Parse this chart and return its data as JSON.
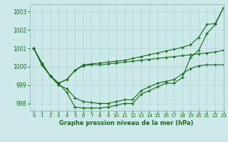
{
  "title": "Graphe pression niveau de la mer (hPa)",
  "bg_color": "#cce8e8",
  "line_color": "#1a6b1a",
  "xlim": [
    -0.5,
    23
  ],
  "ylim": [
    997.6,
    1003.4
  ],
  "yticks": [
    998,
    999,
    1000,
    1001,
    1002,
    1003
  ],
  "xticks": [
    0,
    1,
    2,
    3,
    4,
    5,
    6,
    7,
    8,
    9,
    10,
    11,
    12,
    13,
    14,
    15,
    16,
    17,
    18,
    19,
    20,
    21,
    22,
    23
  ],
  "series": [
    {
      "x": [
        0,
        1,
        2,
        3,
        4,
        5,
        6,
        7,
        8,
        9,
        10,
        11,
        12,
        13,
        14,
        15,
        16,
        17,
        18,
        19,
        20,
        21,
        22,
        23
      ],
      "y": [
        1001.0,
        1000.2,
        999.5,
        999.1,
        998.6,
        997.8,
        997.75,
        997.75,
        997.75,
        997.8,
        997.9,
        998.0,
        998.0,
        998.5,
        998.7,
        998.9,
        999.1,
        999.1,
        999.4,
        1000.5,
        1000.9,
        1001.8,
        1002.3,
        1003.2
      ]
    },
    {
      "x": [
        0,
        1,
        2,
        3,
        4,
        5,
        6,
        7,
        8,
        9,
        10,
        11,
        12,
        13,
        14,
        15,
        16,
        17,
        18,
        19,
        20,
        21,
        22,
        23
      ],
      "y": [
        1001.0,
        1000.1,
        999.5,
        999.0,
        998.8,
        998.3,
        998.1,
        998.05,
        998.0,
        998.0,
        998.1,
        998.2,
        998.2,
        998.7,
        998.9,
        999.1,
        999.2,
        999.3,
        999.6,
        999.9,
        1000.05,
        1000.1,
        1000.1,
        1000.1
      ]
    },
    {
      "x": [
        0,
        1,
        2,
        3,
        4,
        5,
        6,
        7,
        8,
        9,
        10,
        11,
        12,
        13,
        14,
        15,
        16,
        17,
        18,
        19,
        20,
        21,
        22,
        23
      ],
      "y": [
        1001.0,
        1000.1,
        999.5,
        999.1,
        999.3,
        999.8,
        1000.05,
        1000.1,
        1000.1,
        1000.15,
        1000.2,
        1000.25,
        1000.3,
        1000.35,
        1000.4,
        1000.45,
        1000.5,
        1000.55,
        1000.6,
        1000.65,
        1000.7,
        1000.75,
        1000.8,
        1000.9
      ]
    },
    {
      "x": [
        0,
        1,
        2,
        3,
        4,
        5,
        6,
        7,
        8,
        9,
        10,
        11,
        12,
        13,
        14,
        15,
        16,
        17,
        18,
        19,
        20,
        21,
        22,
        23
      ],
      "y": [
        1001.0,
        1000.1,
        999.5,
        999.1,
        999.3,
        999.8,
        1000.1,
        1000.15,
        1000.2,
        1000.25,
        1000.3,
        1000.35,
        1000.45,
        1000.55,
        1000.65,
        1000.75,
        1000.85,
        1000.95,
        1001.05,
        1001.2,
        1001.6,
        1002.3,
        1002.35,
        1003.2
      ]
    }
  ]
}
